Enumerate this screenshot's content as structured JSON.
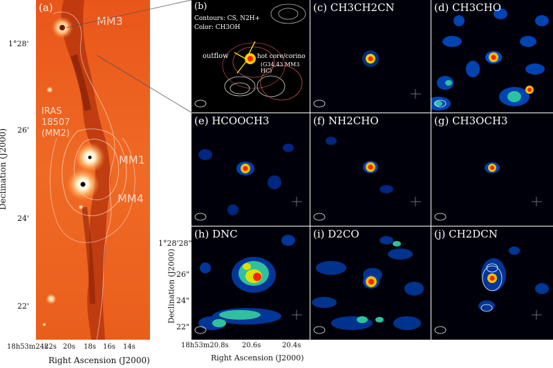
{
  "left_panel": {
    "label": "(a)",
    "sources": [
      "MM3",
      "MM1",
      "MM4"
    ],
    "iras": [
      "IRAS",
      "18507",
      "(MM2)"
    ],
    "dec_ticks": [
      "1°28'",
      "26'",
      "24'",
      "22'"
    ],
    "ra_ticks": [
      "18h53m24s",
      "22s",
      "20s",
      "18s",
      "16s",
      "14s"
    ],
    "xlabel": "Right Ascension (J2000)",
    "ylabel": "Declination (J2000)"
  },
  "panels": [
    {
      "id": "b",
      "label": "(b)",
      "legend": [
        "Contours: CS, N2H+",
        "Color: CH3OH"
      ],
      "annotations": [
        "outflow",
        "hot core/corino",
        "(G34.43 MM3 HC)"
      ]
    },
    {
      "id": "c",
      "label": "(c) CH3CH2CN"
    },
    {
      "id": "d",
      "label": "(d) CH3CHO"
    },
    {
      "id": "e",
      "label": "(e) HCOOCH3"
    },
    {
      "id": "f",
      "label": "(f) NH2CHO"
    },
    {
      "id": "g",
      "label": "(g) CH3OCH3"
    },
    {
      "id": "h",
      "label": "(h) DNC"
    },
    {
      "id": "i",
      "label": "(i) D2CO"
    },
    {
      "id": "j",
      "label": "(j) CH2DCN"
    }
  ],
  "zoom_axes": {
    "dec_ticks": [
      "1°28'28\"",
      "26\"",
      "24\"",
      "22\""
    ],
    "ra_ticks": [
      "18h53m20.8s",
      "20.6s",
      "20.4s"
    ],
    "xlabel": "Right Ascension (J2000)",
    "ylabel": "Declination (J2000)"
  },
  "colors": {
    "contour_cs": "#ff5555",
    "contour_n2h": "#ffffff",
    "colormap_low": "#000010",
    "colormap_high": "#ffffff"
  }
}
